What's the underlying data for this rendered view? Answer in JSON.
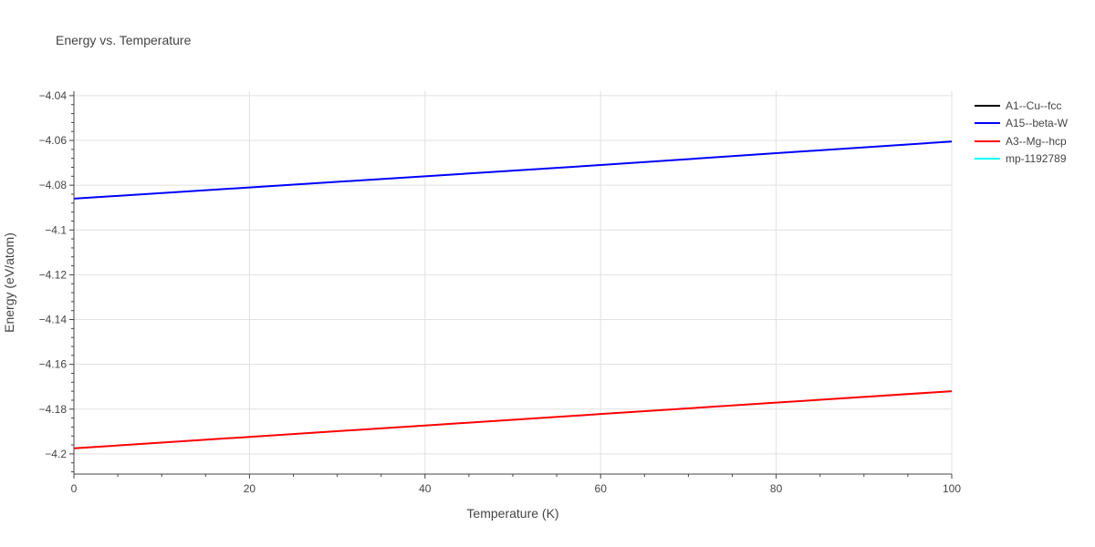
{
  "chart_data": {
    "type": "line",
    "title": "Energy vs. Temperature",
    "xlabel": "Temperature (K)",
    "ylabel": "Energy (eV/atom)",
    "xlim": [
      0,
      100
    ],
    "ylim": [
      -4.209,
      -4.038
    ],
    "x_ticks": [
      0,
      20,
      40,
      60,
      80,
      100
    ],
    "x_tick_labels": [
      "0",
      "20",
      "40",
      "60",
      "80",
      "100"
    ],
    "y_ticks": [
      -4.04,
      -4.06,
      -4.08,
      -4.1,
      -4.12,
      -4.14,
      -4.16,
      -4.18,
      -4.2
    ],
    "y_tick_labels": [
      "−4.04",
      "−4.06",
      "−4.08",
      "−4.1",
      "−4.12",
      "−4.14",
      "−4.16",
      "−4.18",
      "−4.2"
    ],
    "grid": true,
    "legend_position": "right",
    "series": [
      {
        "name": "A1--Cu--fcc",
        "color": "#000000",
        "x": [],
        "y": []
      },
      {
        "name": "A15--beta-W",
        "color": "#0000ff",
        "x": [
          0,
          20,
          40,
          60,
          80,
          100
        ],
        "y": [
          -4.086,
          -4.081,
          -4.076,
          -4.071,
          -4.0657,
          -4.0605
        ]
      },
      {
        "name": "A3--Mg--hcp",
        "color": "#ff0000",
        "x": [
          0,
          20,
          40,
          60,
          80,
          100
        ],
        "y": [
          -4.1975,
          -4.1924,
          -4.1873,
          -4.1822,
          -4.1771,
          -4.172
        ]
      },
      {
        "name": "mp-1192789",
        "color": "#00ffff",
        "x": [],
        "y": []
      }
    ]
  }
}
